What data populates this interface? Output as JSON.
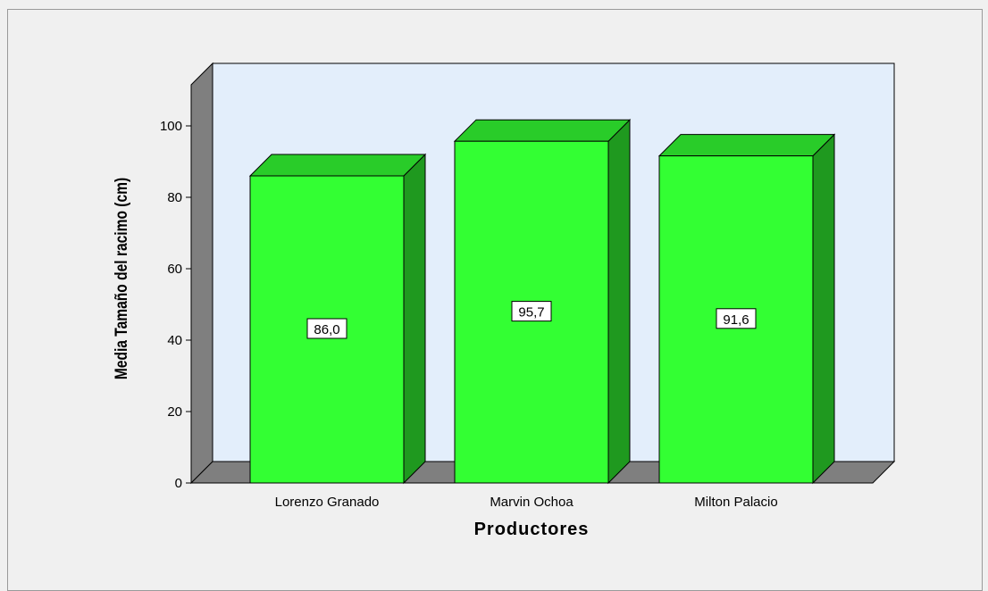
{
  "chart_data": {
    "type": "bar",
    "categories": [
      "Lorenzo Granado",
      "Marvin Ochoa",
      "Milton Palacio"
    ],
    "values": [
      86.0,
      95.7,
      91.6
    ],
    "data_labels": [
      "86,0",
      "95,7",
      "91,6"
    ],
    "xlabel": "Productores",
    "ylabel": "Media Tamaño del racimo (cm)",
    "ylim": [
      0,
      100
    ],
    "yticks": [
      0,
      20,
      40,
      60,
      80,
      100
    ],
    "grid": false,
    "style": "3d",
    "colors": {
      "bar_front": "#33ff33",
      "bar_side": "#1f991f",
      "bar_top": "#29cc29",
      "plot_back": "#e3eefb",
      "plot_wall": "#7f7f7f",
      "plot_floor": "#7f7f7f",
      "background": "#f0f0f0"
    }
  }
}
